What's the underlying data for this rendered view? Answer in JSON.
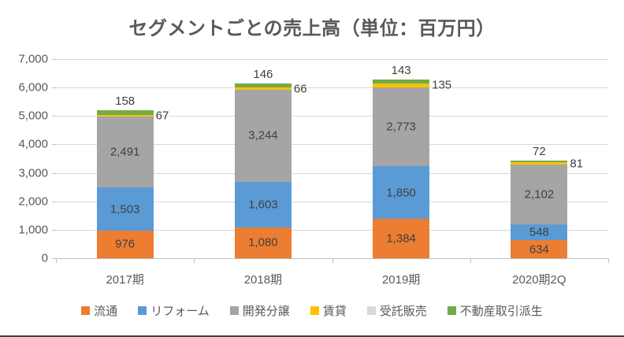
{
  "title": "セグメントごとの売上高（単位：百万円）",
  "chart_data": {
    "type": "bar",
    "stacked": true,
    "title": "セグメントごとの売上高（単位：百万円）",
    "categories": [
      "2017期",
      "2018期",
      "2019期",
      "2020期2Q"
    ],
    "series": [
      {
        "name": "流通",
        "color": "#ED7D31",
        "values": [
          976,
          1080,
          1384,
          634
        ],
        "labels": [
          "976",
          "1,080",
          "1,384",
          "634"
        ],
        "label_placement": "inside"
      },
      {
        "name": "リフォーム",
        "color": "#5B9BD5",
        "values": [
          1503,
          1603,
          1850,
          548
        ],
        "labels": [
          "1,503",
          "1,603",
          "1,850",
          "548"
        ],
        "label_placement": "inside"
      },
      {
        "name": "開発分譲",
        "color": "#A5A5A5",
        "values": [
          2491,
          3244,
          2773,
          2102
        ],
        "labels": [
          "2,491",
          "3,244",
          "2,773",
          "2,102"
        ],
        "label_placement": "inside"
      },
      {
        "name": "賃貸",
        "color": "#FFC000",
        "values": [
          67,
          66,
          135,
          81
        ],
        "labels": [
          "67",
          "66",
          "135",
          "81"
        ],
        "label_placement": "right-outside"
      },
      {
        "name": "受託販売",
        "color": "#D9D9D9",
        "values": [
          0,
          0,
          0,
          0
        ],
        "labels": [
          "",
          "",
          "",
          ""
        ],
        "label_placement": "none"
      },
      {
        "name": "不動産取引派生",
        "color": "#70AD47",
        "values": [
          158,
          146,
          143,
          72
        ],
        "labels": [
          "158",
          "146",
          "143",
          "72"
        ],
        "label_placement": "above"
      }
    ],
    "ylim": [
      0,
      7000
    ],
    "ytick_interval": 1000,
    "ytick_labels": [
      "0",
      "1,000",
      "2,000",
      "3,000",
      "4,000",
      "5,000",
      "6,000",
      "7,000"
    ],
    "grid": true,
    "legend_position": "bottom",
    "colors": {
      "title_text": "#595959",
      "axis_text": "#595959",
      "data_label_text": "#404040",
      "gridline": "#D9D9D9",
      "axis_line": "#BFBFBF",
      "bottom_rule": "#404040"
    }
  }
}
